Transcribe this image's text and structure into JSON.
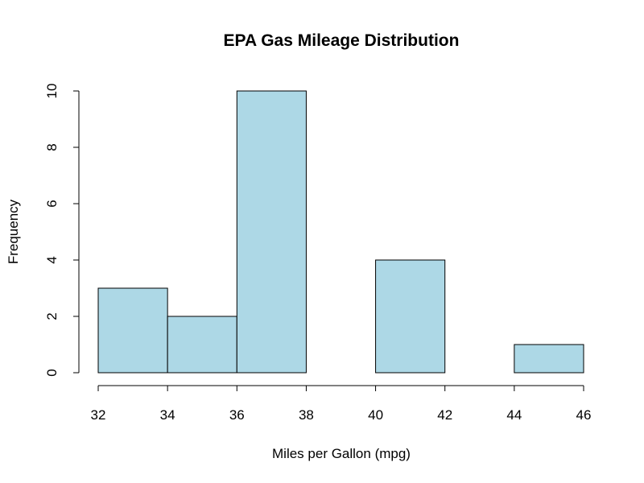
{
  "chart_data": {
    "type": "bar",
    "title": "EPA Gas Mileage Distribution",
    "xlabel": "Miles per Gallon (mpg)",
    "ylabel": "Frequency",
    "bins": [
      {
        "from": 32,
        "to": 34,
        "count": 3
      },
      {
        "from": 34,
        "to": 36,
        "count": 2
      },
      {
        "from": 36,
        "to": 38,
        "count": 10
      },
      {
        "from": 38,
        "to": 40,
        "count": 0
      },
      {
        "from": 40,
        "to": 42,
        "count": 4
      },
      {
        "from": 42,
        "to": 44,
        "count": 0
      },
      {
        "from": 44,
        "to": 46,
        "count": 1
      }
    ],
    "xlim": [
      32,
      46
    ],
    "ylim": [
      0,
      10
    ],
    "x_ticks": [
      "32",
      "34",
      "36",
      "38",
      "40",
      "42",
      "44",
      "46"
    ],
    "y_ticks": [
      "0",
      "2",
      "4",
      "6",
      "8",
      "10"
    ],
    "grid": false,
    "legend": "none",
    "colors": {
      "bar_fill": "#add8e6",
      "bar_stroke": "#000000",
      "axis": "#000000"
    }
  }
}
